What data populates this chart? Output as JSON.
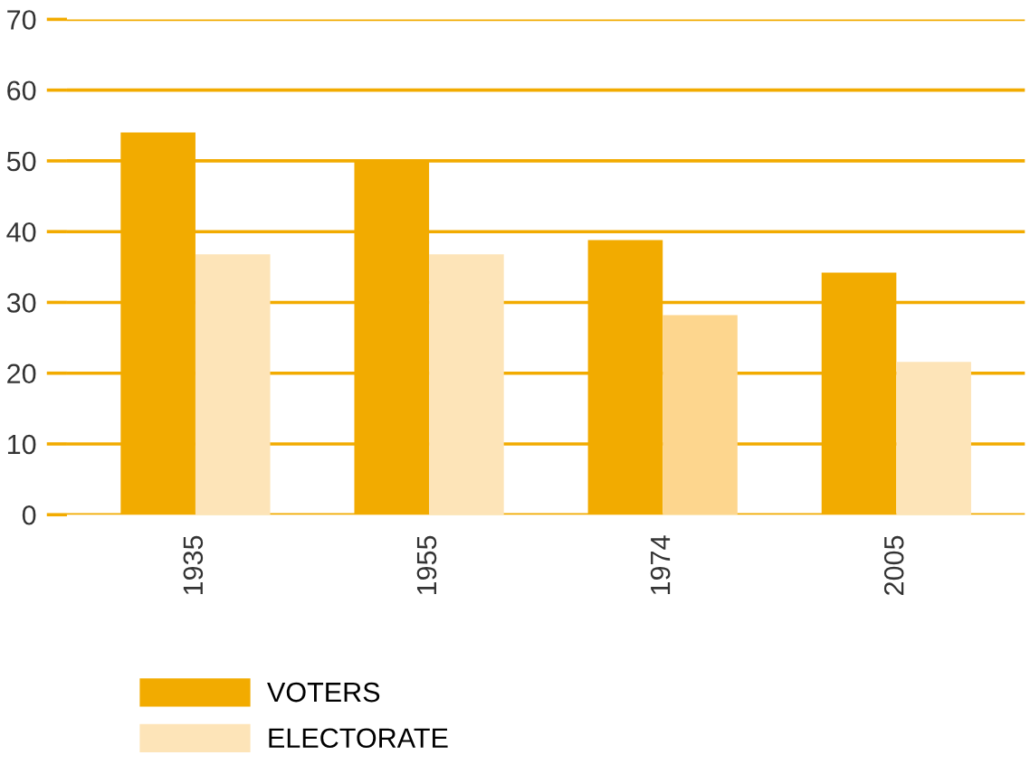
{
  "chart_data": {
    "type": "bar",
    "categories": [
      "1935",
      "1955",
      "1974",
      "2005"
    ],
    "series": [
      {
        "name": "VOTERS",
        "color": "#f2ab00",
        "values": [
          54,
          50,
          38.8,
          34.2
        ]
      },
      {
        "name": "ELECTORATE",
        "color": "#fde4b8",
        "colors": [
          "#fde4b8",
          "#fde4b8",
          "#fdd68e",
          "#fde4b8"
        ],
        "values": [
          36.8,
          36.8,
          28.2,
          21.6
        ]
      }
    ],
    "ylim": [
      0,
      70
    ],
    "yticks": [
      0,
      10,
      20,
      30,
      40,
      50,
      60,
      70
    ],
    "grid": "y",
    "legend": "bottom left"
  }
}
